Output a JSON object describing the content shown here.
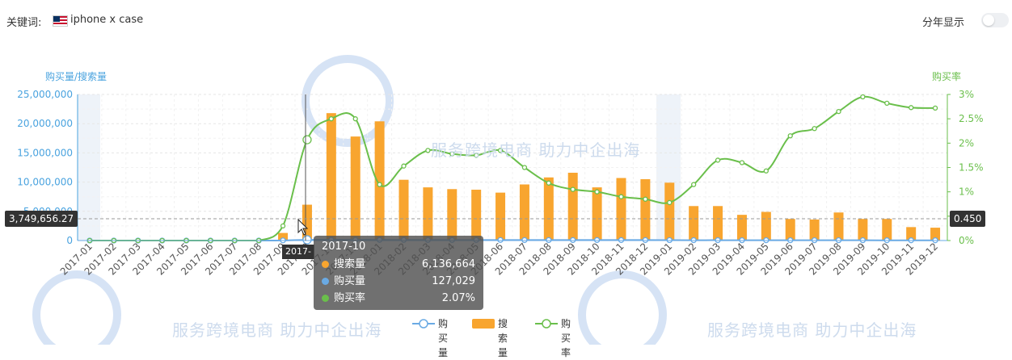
{
  "header": {
    "keyword_label": "关键词:",
    "keyword_value": "iphone x case",
    "year_toggle_label": "分年显示"
  },
  "watermark": {
    "text": "服务跨境电商 助力中企出海"
  },
  "colors": {
    "left_axis": "#4aa3df",
    "right_axis": "#6abf4b",
    "bar": "#f8a52f",
    "purchase_line": "#6aaae4",
    "rate_line": "#6abf4b"
  },
  "chart_data": {
    "type": "bar",
    "categories": [
      "2017-01",
      "2017-02",
      "2017-03",
      "2017-04",
      "2017-05",
      "2017-06",
      "2017-07",
      "2017-08",
      "2017-09",
      "2017-10",
      "2017-11",
      "2017-12",
      "2018-01",
      "2018-02",
      "2018-03",
      "2018-04",
      "2018-05",
      "2018-06",
      "2018-07",
      "2018-08",
      "2018-09",
      "2018-10",
      "2018-11",
      "2018-12",
      "2019-01",
      "2019-02",
      "2019-03",
      "2019-04",
      "2019-05",
      "2019-06",
      "2019-07",
      "2019-08",
      "2019-09",
      "2019-10",
      "2019-11",
      "2019-12"
    ],
    "series": [
      {
        "name": "购买量",
        "type": "line",
        "axis": "left",
        "values": [
          0,
          0,
          0,
          0,
          0,
          0,
          0,
          0,
          20000,
          127029,
          130000,
          120000,
          110000,
          100000,
          90000,
          90000,
          90000,
          90000,
          80000,
          80000,
          80000,
          80000,
          80000,
          80000,
          70000,
          60000,
          60000,
          50000,
          50000,
          50000,
          50000,
          50000,
          50000,
          40000,
          40000,
          40000
        ]
      },
      {
        "name": "搜索量",
        "type": "bar",
        "axis": "left",
        "values": [
          0,
          0,
          0,
          0,
          0,
          0,
          0,
          0,
          1300000,
          6136664,
          21800000,
          17800000,
          20400000,
          10400000,
          9100000,
          8800000,
          8700000,
          8200000,
          9600000,
          10800000,
          11600000,
          9100000,
          10700000,
          10500000,
          9900000,
          5900000,
          5900000,
          4400000,
          4900000,
          3700000,
          3600000,
          4800000,
          3700000,
          3700000,
          2300000,
          2200000
        ]
      },
      {
        "name": "购买率",
        "type": "line",
        "axis": "right",
        "values": [
          0,
          0,
          0,
          0,
          0,
          0,
          0,
          0,
          0.3,
          2.07,
          2.5,
          2.5,
          1.15,
          1.53,
          1.85,
          1.78,
          1.75,
          1.85,
          1.5,
          1.18,
          1.05,
          1.0,
          0.9,
          0.85,
          0.78,
          1.15,
          1.65,
          1.6,
          1.43,
          2.15,
          2.3,
          2.65,
          2.95,
          2.82,
          2.73,
          2.72
        ]
      }
    ],
    "ylabel_left": "购买量/搜索量",
    "ylabel_right": "购买率",
    "ylim_left": [
      0,
      25000000
    ],
    "yticks_left": [
      "0",
      "5,000,000",
      "10,000,000",
      "15,000,000",
      "20,000,000",
      "25,000,000"
    ],
    "ylim_right": [
      0,
      3
    ],
    "yticks_right": [
      "0%",
      "0.5%",
      "1%",
      "1.5%",
      "2%",
      "2.5%",
      "3%"
    ],
    "grid": true,
    "legend": [
      "购买量",
      "搜索量",
      "购买率"
    ],
    "legend_position": "bottom-center",
    "axis_pointer": {
      "left_value": "3,749,656.27",
      "right_value": "0.450"
    },
    "cursor_label": "2017-",
    "tooltip": {
      "title": "2017-10",
      "rows": [
        {
          "name": "搜索量",
          "value": "6,136,664"
        },
        {
          "name": "购买量",
          "value": "127,029"
        },
        {
          "name": "购买率",
          "value": "2.07%"
        }
      ]
    }
  }
}
